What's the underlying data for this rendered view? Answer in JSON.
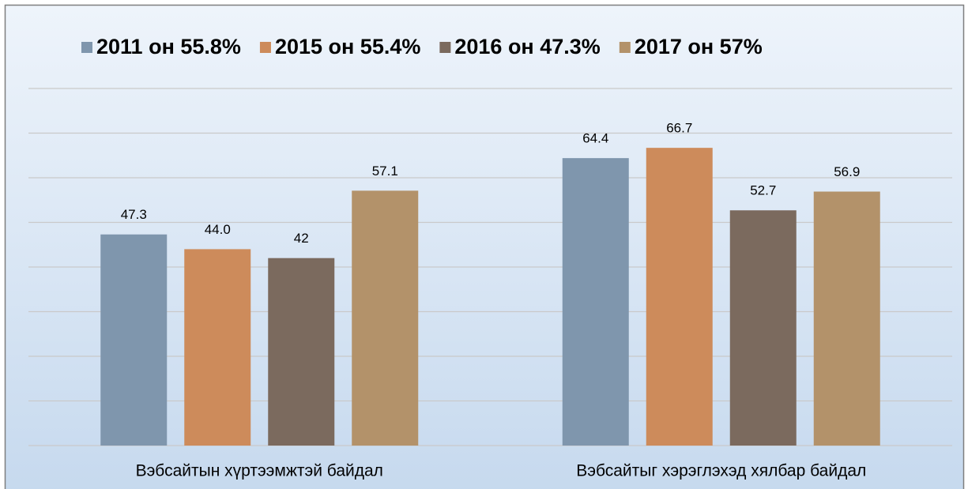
{
  "chart_data": {
    "type": "bar",
    "categories": [
      "Вэбсайтын хүртээмжтэй байдал",
      "Вэбсайтыг хэрэглэхэд хялбар байдал"
    ],
    "series": [
      {
        "name": "2011 он 55.8%",
        "color": "#7f96ad",
        "values": [
          47.3,
          64.4
        ]
      },
      {
        "name": "2015 он 55.4%",
        "color": "#cd8b5b",
        "values": [
          44.0,
          66.7
        ],
        "value_labels": [
          "44.0",
          "66.7"
        ]
      },
      {
        "name": "2016 он 47.3%",
        "color": "#7b6a5e",
        "values": [
          42,
          52.7
        ]
      },
      {
        "name": "2017 он  57%",
        "color": "#b3926a",
        "values": [
          57.1,
          56.9
        ]
      }
    ],
    "ylim": [
      0,
      80
    ],
    "yticks": [
      0,
      10,
      20,
      30,
      40,
      50,
      60,
      70,
      80
    ],
    "grid": true,
    "legend": "top"
  }
}
